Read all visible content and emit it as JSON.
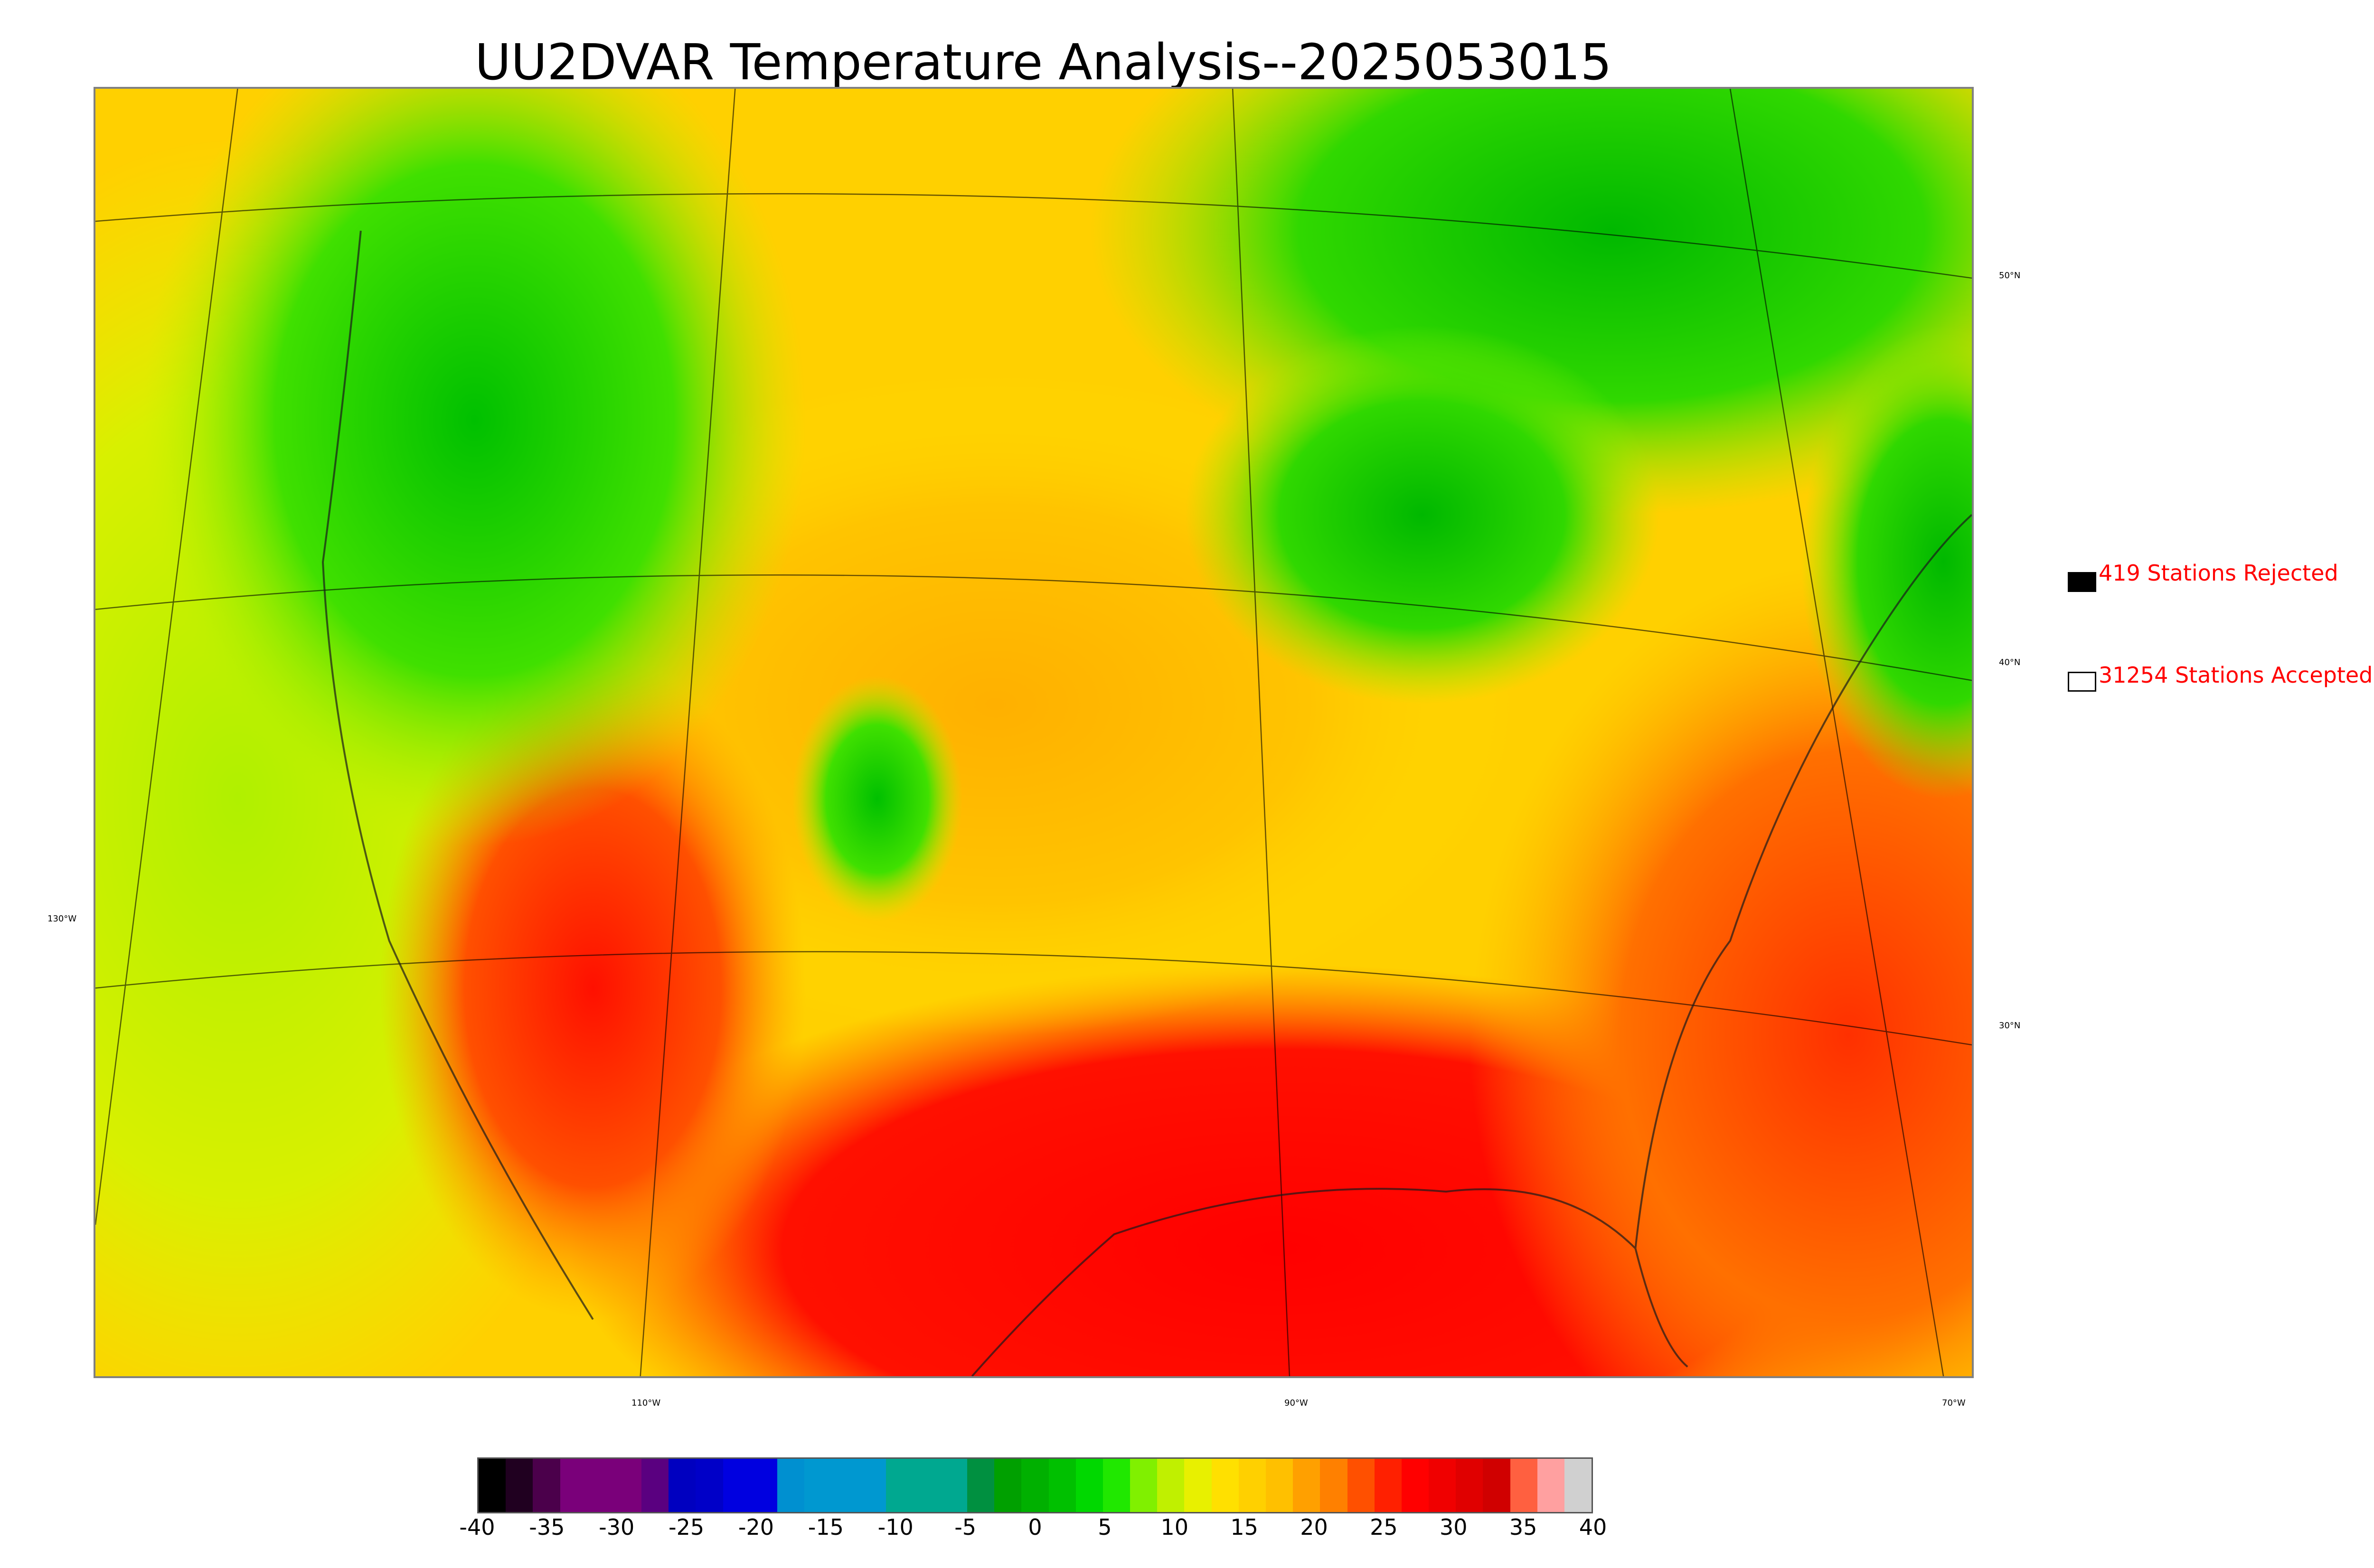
{
  "title": "UU2DVAR Temperature Analysis--2025053015",
  "map": {
    "lon_labels": [
      "130°W",
      "110°W",
      "90°W",
      "70°W"
    ],
    "lat_labels": [
      "50°N",
      "40°N",
      "30°N"
    ]
  },
  "legend": {
    "rejected": {
      "count_text": "419 Stations Rejected",
      "color": "#000000"
    },
    "accepted": {
      "count_text": "31254 Stations Accepted",
      "color": "#ffffff"
    }
  },
  "colorbar": {
    "ticks": [
      "-40",
      "-35",
      "-30",
      "-25",
      "-20",
      "-15",
      "-10",
      "-5",
      "0",
      "5",
      "10",
      "15",
      "20",
      "25",
      "30",
      "35",
      "40"
    ],
    "colors": [
      "#000000",
      "#200020",
      "#4b004b",
      "#7a007a",
      "#7a007a",
      "#7a007a",
      "#5a0080",
      "#0000c0",
      "#0000c8",
      "#0000e0",
      "#0000e0",
      "#0090d0",
      "#0098d0",
      "#0098d0",
      "#0098d0",
      "#00a890",
      "#00a890",
      "#00a890",
      "#009040",
      "#00a000",
      "#00b000",
      "#00c000",
      "#00d800",
      "#20e800",
      "#80f000",
      "#c0f000",
      "#e8f000",
      "#ffe000",
      "#ffd000",
      "#ffc000",
      "#ffa000",
      "#ff8000",
      "#ff5000",
      "#ff2000",
      "#ff0000",
      "#f00000",
      "#e00000",
      "#d00000",
      "#ff6040",
      "#ffa0a0",
      "#d0d0d0"
    ]
  }
}
